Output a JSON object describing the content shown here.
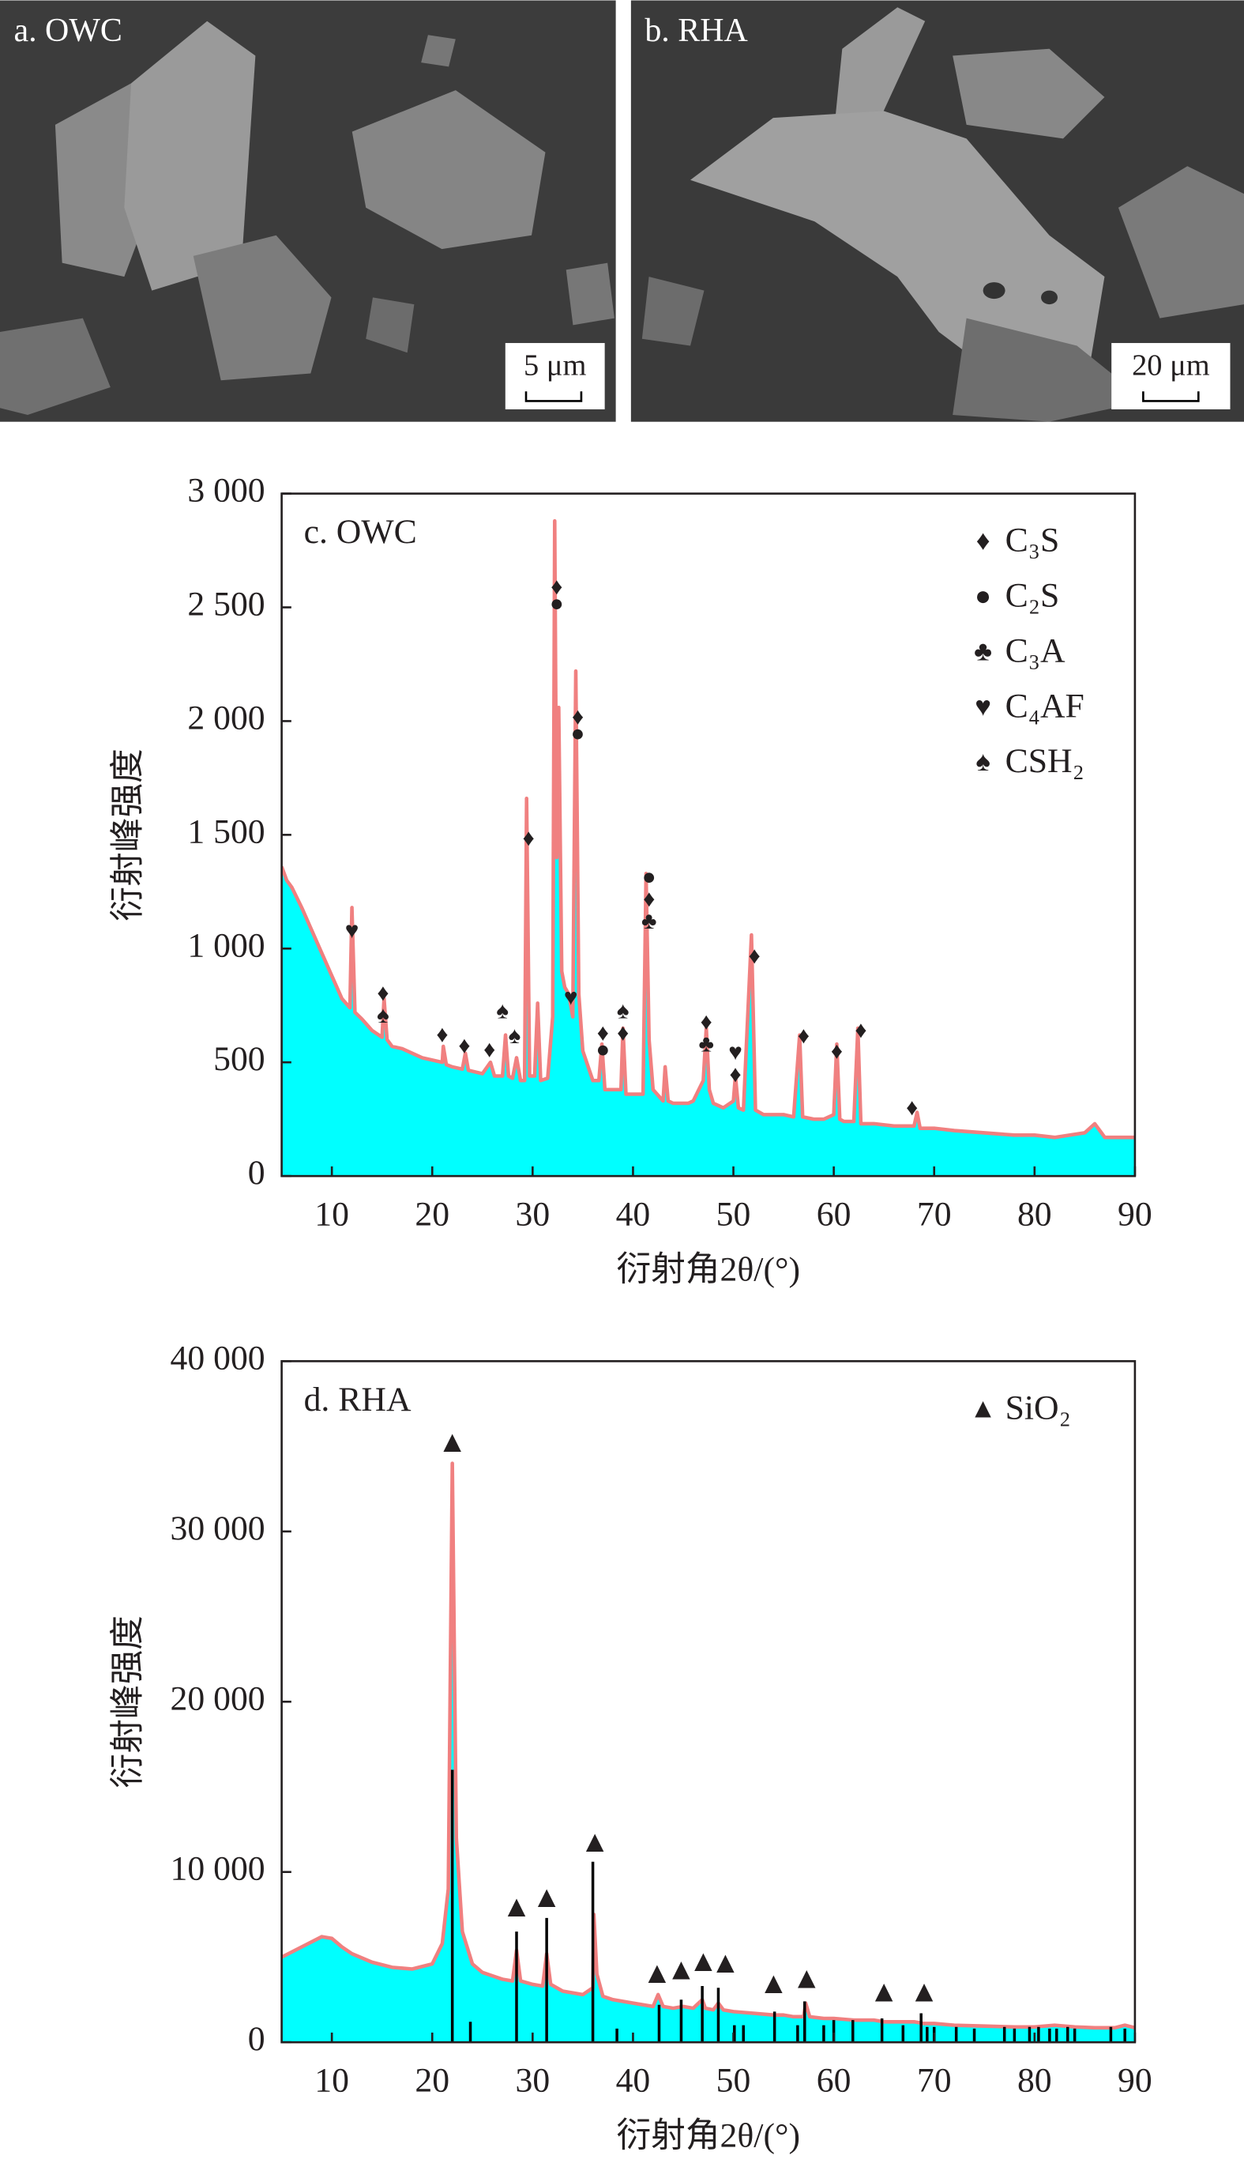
{
  "images": [
    {
      "label": "a. OWC",
      "scale_bar": "5 μm"
    },
    {
      "label": "b. RHA",
      "scale_bar": "20 μm"
    }
  ],
  "chart_data": [
    {
      "type": "area",
      "panel_label": "c. OWC",
      "ylabel": "衍射峰强度",
      "xlabel": "衍射角2θ/(°)",
      "xlim": [
        5,
        90
      ],
      "ylim": [
        0,
        3000
      ],
      "xticks": [
        10,
        20,
        30,
        40,
        50,
        60,
        70,
        80,
        90
      ],
      "yticks": [
        0,
        500,
        {
          "value": 1000,
          "label": "1 000"
        },
        {
          "value": 1500,
          "label": "1 500"
        },
        {
          "value": 2000,
          "label": "2 000"
        },
        {
          "value": 2500,
          "label": "2 500"
        },
        {
          "value": 3000,
          "label": "3 000"
        }
      ],
      "color": "#f08080",
      "fill_color": "#00ffff",
      "x": [
        5,
        5.5,
        6,
        7,
        8,
        9,
        10,
        11,
        11.8,
        12,
        12.3,
        13,
        14,
        15,
        15.2,
        15.5,
        16,
        17,
        18,
        19,
        20,
        21,
        21.1,
        21.4,
        22,
        23,
        23.3,
        23.6,
        25,
        25.8,
        26.2,
        27,
        27.3,
        27.6,
        28,
        28.4,
        28.8,
        29.2,
        29.4,
        29.7,
        30.2,
        30.5,
        30.8,
        31.5,
        32,
        32.2,
        32.4,
        32.6,
        32.9,
        33.2,
        33.6,
        34,
        34.3,
        34.6,
        35,
        36,
        36.6,
        36.9,
        37.2,
        38,
        38.8,
        39,
        39.3,
        40,
        41,
        41.3,
        41.6,
        42,
        43,
        43.2,
        43.5,
        44,
        45.5,
        46,
        47,
        47.3,
        47.6,
        48,
        49,
        50,
        50.2,
        50.5,
        51,
        51.8,
        52.2,
        53,
        54,
        55,
        56,
        56.6,
        56.9,
        58,
        59,
        60,
        60.3,
        60.6,
        61,
        62,
        62.4,
        62.7,
        64,
        66,
        68,
        68.3,
        68.6,
        70,
        72,
        75,
        78,
        80,
        82,
        85,
        86,
        87,
        88,
        90
      ],
      "values": [
        1360,
        1300,
        1270,
        1180,
        1080,
        980,
        880,
        780,
        740,
        1180,
        720,
        690,
        640,
        610,
        780,
        600,
        570,
        560,
        540,
        520,
        510,
        500,
        570,
        490,
        480,
        470,
        540,
        465,
        450,
        500,
        440,
        440,
        620,
        440,
        430,
        520,
        420,
        420,
        1660,
        440,
        440,
        760,
        420,
        430,
        700,
        2880,
        1400,
        2060,
        900,
        830,
        800,
        700,
        2220,
        800,
        550,
        420,
        420,
        580,
        380,
        380,
        380,
        650,
        360,
        360,
        360,
        1330,
        600,
        380,
        330,
        480,
        330,
        320,
        320,
        330,
        420,
        650,
        380,
        320,
        300,
        330,
        440,
        300,
        290,
        1060,
        290,
        270,
        270,
        270,
        260,
        620,
        260,
        250,
        250,
        270,
        580,
        250,
        240,
        240,
        650,
        230,
        230,
        220,
        220,
        280,
        210,
        210,
        200,
        190,
        180,
        180,
        170,
        190,
        230,
        170,
        170,
        170
      ],
      "legend": [
        {
          "symbol": "♦",
          "label": "C₃S"
        },
        {
          "symbol": "●",
          "label": "C₂S"
        },
        {
          "symbol": "♣",
          "label": "C₃A"
        },
        {
          "symbol": "♥",
          "label": "C₄AF"
        },
        {
          "symbol": "♠",
          "label": "CSH₂"
        }
      ],
      "markers": [
        {
          "symbol": "♥",
          "x": 12,
          "y": 1069
        },
        {
          "symbol": "♦",
          "x": 15.1,
          "y": 796
        },
        {
          "symbol": "♠",
          "x": 15.1,
          "y": 698
        },
        {
          "symbol": "♦",
          "x": 21,
          "y": 613
        },
        {
          "symbol": "♦",
          "x": 23.2,
          "y": 565
        },
        {
          "symbol": "♦",
          "x": 25.7,
          "y": 547
        },
        {
          "symbol": "♠",
          "x": 27,
          "y": 717
        },
        {
          "symbol": "♠",
          "x": 28.2,
          "y": 607
        },
        {
          "symbol": "♦",
          "x": 29.6,
          "y": 1476
        },
        {
          "symbol": "♦",
          "x": 32.4,
          "y": 2581
        },
        {
          "symbol": "●",
          "x": 32.4,
          "y": 2508
        },
        {
          "symbol": "♥",
          "x": 33.8,
          "y": 777
        },
        {
          "symbol": "♦",
          "x": 34.5,
          "y": 2010
        },
        {
          "symbol": "●",
          "x": 34.5,
          "y": 1937
        },
        {
          "symbol": "♦",
          "x": 37,
          "y": 619
        },
        {
          "symbol": "●",
          "x": 37,
          "y": 547
        },
        {
          "symbol": "♠",
          "x": 39,
          "y": 717
        },
        {
          "symbol": "♦",
          "x": 39,
          "y": 619
        },
        {
          "symbol": "●",
          "x": 41.6,
          "y": 1306
        },
        {
          "symbol": "♦",
          "x": 41.6,
          "y": 1208
        },
        {
          "symbol": "♣",
          "x": 41.6,
          "y": 1111
        },
        {
          "symbol": "♦",
          "x": 47.3,
          "y": 668
        },
        {
          "symbol": "♣",
          "x": 47.3,
          "y": 571
        },
        {
          "symbol": "♥",
          "x": 50.2,
          "y": 534
        },
        {
          "symbol": "♦",
          "x": 50.2,
          "y": 437
        },
        {
          "symbol": "♦",
          "x": 52.1,
          "y": 959
        },
        {
          "symbol": "♦",
          "x": 57,
          "y": 607
        },
        {
          "symbol": "♦",
          "x": 60.3,
          "y": 540
        },
        {
          "symbol": "♦",
          "x": 62.7,
          "y": 632
        },
        {
          "symbol": "♦",
          "x": 67.8,
          "y": 291
        }
      ]
    },
    {
      "type": "area",
      "panel_label": "d. RHA",
      "ylabel": "衍射峰强度",
      "xlabel": "衍射角2θ/(°)",
      "xlim": [
        5,
        90
      ],
      "ylim": [
        0,
        40000
      ],
      "xticks": [
        10,
        20,
        30,
        40,
        50,
        60,
        70,
        80,
        90
      ],
      "yticks": [
        0,
        {
          "value": 10000,
          "label": "10 000"
        },
        {
          "value": 20000,
          "label": "20 000"
        },
        {
          "value": 30000,
          "label": "30 000"
        },
        {
          "value": 40000,
          "label": "40 000"
        }
      ],
      "color": "#f08080",
      "fill_color": "#00ffff",
      "x": [
        5,
        7,
        9,
        10,
        11,
        12,
        14,
        16,
        18,
        20,
        21,
        21.6,
        22,
        22.4,
        23,
        24,
        25,
        26,
        27,
        28,
        28.4,
        28.8,
        30,
        31,
        31.4,
        31.8,
        33,
        35,
        36,
        36.1,
        36.4,
        37,
        38,
        40,
        42,
        42.5,
        43,
        44,
        45,
        46,
        46.9,
        47.2,
        48,
        48.5,
        49,
        50,
        52,
        54,
        55,
        56,
        57,
        57.2,
        57.6,
        59,
        60,
        62,
        64,
        65,
        66,
        68,
        69,
        70,
        72,
        75,
        78,
        80,
        82,
        84,
        86,
        88,
        89,
        90
      ],
      "values": [
        5000,
        5600,
        6200,
        6100,
        5600,
        5200,
        4700,
        4400,
        4300,
        4600,
        5800,
        9000,
        34000,
        12000,
        6500,
        4600,
        4100,
        3900,
        3700,
        3600,
        5400,
        3600,
        3400,
        3300,
        5200,
        3400,
        3000,
        2800,
        3200,
        7500,
        4000,
        2700,
        2500,
        2300,
        2100,
        2800,
        2100,
        2000,
        2100,
        2000,
        2500,
        2000,
        1900,
        2300,
        1900,
        1800,
        1700,
        1600,
        1600,
        1500,
        1500,
        2300,
        1500,
        1400,
        1400,
        1300,
        1300,
        1200,
        1200,
        1200,
        1100,
        1100,
        1000,
        950,
        900,
        900,
        1000,
        900,
        850,
        850,
        1000,
        850
      ],
      "reference": {
        "color": "#000000",
        "x": [
          22,
          23.8,
          28.4,
          31.4,
          36,
          38.4,
          42.6,
          44.8,
          46.9,
          48.5,
          50.1,
          51,
          54.1,
          56.4,
          57.1,
          59,
          60,
          61.9,
          64.8,
          66.9,
          68.7,
          69.3,
          70,
          72.2,
          74,
          77,
          78,
          79.5,
          80.4,
          81.5,
          82.2,
          83.3,
          84,
          87.6,
          89
        ],
        "values": [
          16000,
          1200,
          6500,
          7300,
          10600,
          800,
          2200,
          2500,
          3300,
          3200,
          1000,
          1000,
          1800,
          1000,
          2400,
          1000,
          1300,
          1300,
          1400,
          1000,
          1700,
          900,
          900,
          900,
          800,
          900,
          800,
          900,
          900,
          800,
          800,
          900,
          800,
          900,
          800
        ]
      },
      "legend": [
        {
          "symbol": "▲",
          "label": "SiO₂"
        }
      ],
      "markers": [
        {
          "symbol": "▲",
          "x": 22,
          "y": 35100
        },
        {
          "symbol": "▲",
          "x": 28.4,
          "y": 7790
        },
        {
          "symbol": "▲",
          "x": 31.4,
          "y": 8350
        },
        {
          "symbol": "▲",
          "x": 36.2,
          "y": 11600
        },
        {
          "symbol": "▲",
          "x": 42.4,
          "y": 3900
        },
        {
          "symbol": "▲",
          "x": 44.8,
          "y": 4100
        },
        {
          "symbol": "▲",
          "x": 47,
          "y": 4600
        },
        {
          "symbol": "▲",
          "x": 49.2,
          "y": 4500
        },
        {
          "symbol": "▲",
          "x": 54,
          "y": 3300
        },
        {
          "symbol": "▲",
          "x": 57.3,
          "y": 3600
        },
        {
          "symbol": "▲",
          "x": 65,
          "y": 2800
        },
        {
          "symbol": "▲",
          "x": 69,
          "y": 2800
        }
      ]
    }
  ]
}
